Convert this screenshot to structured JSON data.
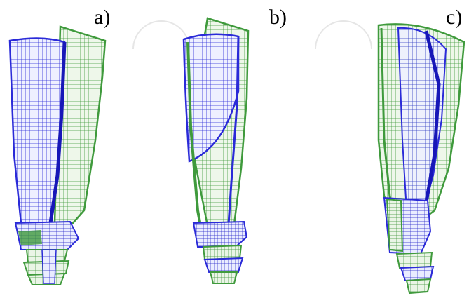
{
  "panels": [
    {
      "label": "a)"
    },
    {
      "label": "b)"
    },
    {
      "label": "c)"
    }
  ],
  "colors": {
    "mesh_blue": "#2a2ad8",
    "mesh_green": "#3f9a3c",
    "blue_fill": "#eef0ff",
    "green_fill": "#eef7ea",
    "watermark": "#e6e6e6"
  }
}
